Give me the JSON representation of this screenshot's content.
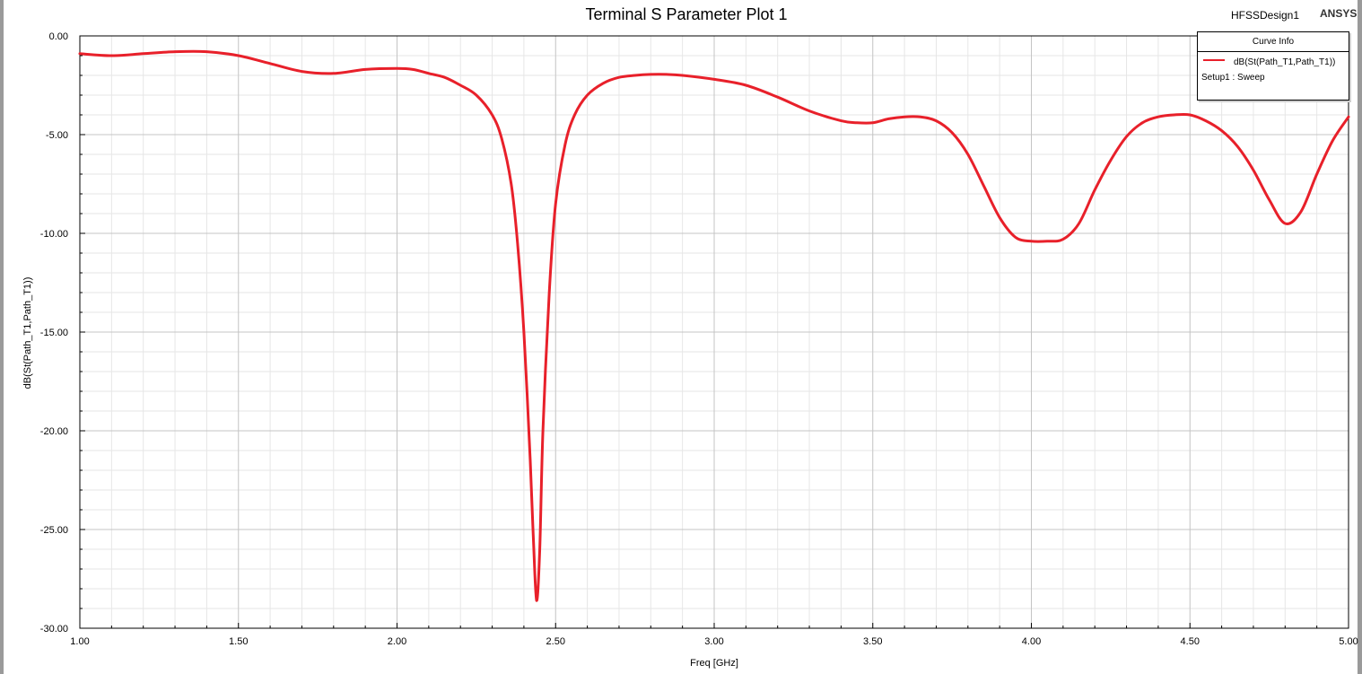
{
  "header": {
    "title": "Terminal S Parameter Plot 1",
    "design": "HFSSDesign1",
    "brand": "ANSYS"
  },
  "legend": {
    "title": "Curve Info",
    "curve": "dB(St(Path_T1,Path_T1))",
    "setup": "Setup1 : Sweep",
    "color": "#e8202a"
  },
  "chart_data": {
    "type": "line",
    "title": "Terminal S Parameter Plot 1",
    "xlabel": "Freq [GHz]",
    "ylabel": "dB(St(Path_T1,Path_T1))",
    "xlim": [
      1.0,
      5.0
    ],
    "ylim": [
      -30.0,
      0.0
    ],
    "x_ticks": [
      "1.00",
      "1.50",
      "2.00",
      "2.50",
      "3.00",
      "3.50",
      "4.00",
      "4.50",
      "5.00"
    ],
    "y_ticks": [
      "0.00",
      "-5.00",
      "-10.00",
      "-15.00",
      "-20.00",
      "-25.00",
      "-30.00"
    ],
    "grid": true,
    "legend_position": "top-right",
    "series": [
      {
        "name": "dB(St(Path_T1,Path_T1))",
        "color": "#e8202a",
        "x": [
          1.0,
          1.1,
          1.2,
          1.3,
          1.4,
          1.5,
          1.6,
          1.7,
          1.8,
          1.9,
          2.0,
          2.05,
          2.1,
          2.15,
          2.2,
          2.25,
          2.3,
          2.33,
          2.36,
          2.38,
          2.4,
          2.42,
          2.43,
          2.44,
          2.45,
          2.46,
          2.48,
          2.5,
          2.53,
          2.56,
          2.6,
          2.65,
          2.7,
          2.75,
          2.8,
          2.85,
          2.9,
          3.0,
          3.1,
          3.2,
          3.3,
          3.4,
          3.45,
          3.5,
          3.55,
          3.6,
          3.65,
          3.7,
          3.75,
          3.8,
          3.85,
          3.9,
          3.95,
          4.0,
          4.05,
          4.1,
          4.15,
          4.2,
          4.25,
          4.3,
          4.35,
          4.4,
          4.45,
          4.5,
          4.55,
          4.6,
          4.65,
          4.7,
          4.75,
          4.8,
          4.85,
          4.9,
          4.95,
          5.0
        ],
        "values": [
          -0.9,
          -1.0,
          -0.9,
          -0.8,
          -0.8,
          -1.0,
          -1.4,
          -1.8,
          -1.9,
          -1.7,
          -1.65,
          -1.7,
          -1.9,
          -2.1,
          -2.5,
          -3.0,
          -4.0,
          -5.2,
          -7.5,
          -10.5,
          -15.0,
          -21.5,
          -25.5,
          -28.6,
          -26.0,
          -20.0,
          -13.0,
          -8.5,
          -5.5,
          -4.0,
          -3.0,
          -2.4,
          -2.1,
          -2.0,
          -1.95,
          -1.95,
          -2.0,
          -2.2,
          -2.5,
          -3.1,
          -3.8,
          -4.3,
          -4.4,
          -4.4,
          -4.2,
          -4.1,
          -4.1,
          -4.3,
          -4.9,
          -6.0,
          -7.6,
          -9.2,
          -10.2,
          -10.4,
          -10.4,
          -10.3,
          -9.5,
          -7.8,
          -6.3,
          -5.1,
          -4.4,
          -4.1,
          -4.0,
          -4.0,
          -4.3,
          -4.8,
          -5.6,
          -6.8,
          -8.3,
          -9.5,
          -8.9,
          -7.0,
          -5.3,
          -4.1
        ]
      }
    ]
  }
}
